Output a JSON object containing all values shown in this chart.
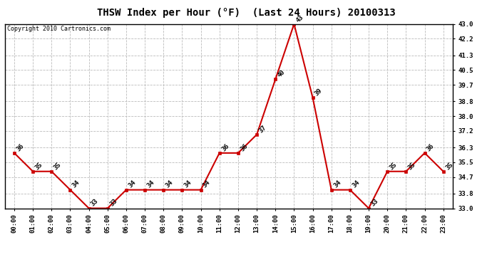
{
  "title": "THSW Index per Hour (°F)  (Last 24 Hours) 20100313",
  "copyright_text": "Copyright 2010 Cartronics.com",
  "hours": [
    "00:00",
    "01:00",
    "02:00",
    "03:00",
    "04:00",
    "05:00",
    "06:00",
    "07:00",
    "08:00",
    "09:00",
    "10:00",
    "11:00",
    "12:00",
    "13:00",
    "14:00",
    "15:00",
    "16:00",
    "17:00",
    "18:00",
    "19:00",
    "20:00",
    "21:00",
    "22:00",
    "23:00"
  ],
  "values": [
    36,
    35,
    35,
    34,
    33,
    33,
    34,
    34,
    34,
    34,
    34,
    36,
    36,
    37,
    40,
    43,
    39,
    34,
    34,
    33,
    35,
    35,
    36,
    35
  ],
  "ylim_min": 33.0,
  "ylim_max": 43.0,
  "yticks": [
    33.0,
    33.8,
    34.7,
    35.5,
    36.3,
    37.2,
    38.0,
    38.8,
    39.7,
    40.5,
    41.3,
    42.2,
    43.0
  ],
  "line_color": "#cc0000",
  "marker_color": "#cc0000",
  "grid_color": "#bbbbbb",
  "bg_color": "#ffffff",
  "title_fontsize": 10,
  "tick_fontsize": 6.5,
  "annotation_fontsize": 6.5,
  "copyright_fontsize": 6.0
}
